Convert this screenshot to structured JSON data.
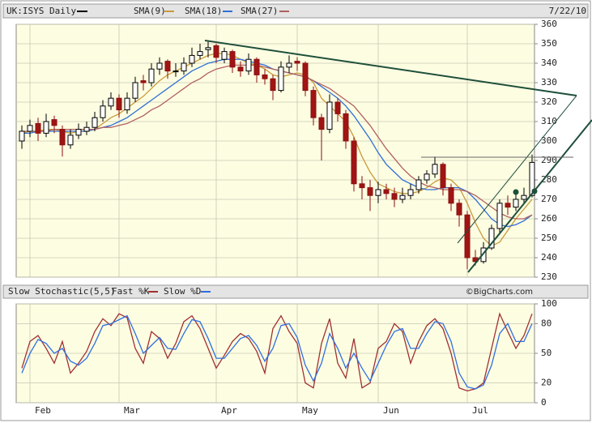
{
  "chart_data": [
    {
      "type": "candlestick",
      "title": "UK:ISYS Daily",
      "date": "7/22/10",
      "source": "©BigCharts.com",
      "categories": [
        null,
        "Feb",
        null,
        null,
        null,
        null,
        null,
        null,
        null,
        null,
        null,
        null,
        "Mar",
        null,
        null,
        null,
        null,
        null,
        null,
        null,
        null,
        null,
        null,
        null,
        "Apr",
        null,
        null,
        null,
        null,
        null,
        null,
        null,
        null,
        null,
        "May",
        null,
        null,
        null,
        null,
        null,
        null,
        null,
        null,
        null,
        "Jun",
        null,
        null,
        null,
        null,
        null,
        null,
        null,
        null,
        null,
        null,
        "Jul",
        null,
        null,
        null,
        null,
        null,
        null,
        null,
        null
      ],
      "open": [
        300,
        305,
        309,
        304,
        311,
        306,
        298,
        303,
        305,
        307,
        312,
        318,
        322,
        316,
        322,
        331,
        330,
        337,
        341,
        336,
        336,
        340,
        344,
        347,
        349,
        342,
        346,
        338,
        336,
        342,
        334,
        332,
        326,
        338,
        341,
        340,
        326,
        312,
        306,
        320,
        314,
        300,
        278,
        276,
        272,
        275,
        273,
        270,
        272,
        275,
        280,
        283,
        288,
        276,
        268,
        262,
        240,
        238,
        245,
        255,
        268,
        266,
        270,
        272
      ],
      "high": [
        308,
        311,
        312,
        314,
        313,
        308,
        306,
        309,
        310,
        315,
        321,
        325,
        324,
        325,
        333,
        334,
        340,
        343,
        342,
        340,
        343,
        348,
        350,
        351,
        350,
        348,
        347,
        341,
        345,
        343,
        337,
        334,
        341,
        344,
        343,
        341,
        328,
        314,
        324,
        322,
        316,
        302,
        282,
        280,
        279,
        278,
        276,
        276,
        278,
        282,
        285,
        292,
        289,
        278,
        270,
        264,
        244,
        248,
        257,
        270,
        272,
        273,
        276,
        293
      ],
      "low": [
        296,
        302,
        300,
        302,
        304,
        292,
        296,
        301,
        303,
        305,
        310,
        316,
        312,
        314,
        320,
        326,
        328,
        334,
        332,
        333,
        334,
        338,
        342,
        343,
        340,
        340,
        335,
        333,
        334,
        330,
        329,
        321,
        325,
        335,
        336,
        323,
        308,
        290,
        304,
        310,
        296,
        274,
        270,
        264,
        268,
        270,
        266,
        268,
        270,
        273,
        278,
        281,
        272,
        264,
        256,
        234,
        236,
        237,
        244,
        253,
        262,
        264,
        268,
        271
      ],
      "close": [
        305,
        308,
        304,
        310,
        308,
        298,
        303,
        306,
        307,
        312,
        318,
        322,
        316,
        322,
        330,
        330,
        337,
        340,
        336,
        336,
        340,
        344,
        346,
        348,
        343,
        346,
        338,
        336,
        342,
        334,
        332,
        326,
        338,
        340,
        340,
        326,
        312,
        306,
        320,
        314,
        300,
        278,
        276,
        272,
        275,
        273,
        270,
        272,
        275,
        280,
        283,
        288,
        276,
        268,
        262,
        240,
        238,
        245,
        255,
        268,
        266,
        270,
        272,
        289
      ],
      "series": [
        {
          "name": "SMA(9)",
          "color": "#c89a3c",
          "values": [
            304,
            305,
            305,
            306,
            306,
            305,
            304,
            305,
            305,
            306,
            309,
            312,
            314,
            317,
            320,
            323,
            327,
            331,
            334,
            336,
            338,
            340,
            342,
            344,
            345,
            345,
            344,
            342,
            340,
            339,
            337,
            334,
            333,
            334,
            335,
            334,
            330,
            322,
            318,
            314,
            310,
            302,
            292,
            284,
            278,
            276,
            274,
            273,
            273,
            274,
            276,
            279,
            281,
            280,
            276,
            268,
            258,
            250,
            246,
            248,
            254,
            260,
            265,
            270
          ]
        },
        {
          "name": "SMA(18)",
          "color": "#2f6fd6",
          "values": [
            304,
            304,
            305,
            305,
            305,
            305,
            305,
            305,
            305,
            306,
            307,
            308,
            310,
            312,
            315,
            318,
            321,
            324,
            327,
            330,
            333,
            336,
            338,
            340,
            341,
            342,
            342,
            342,
            341,
            340,
            339,
            337,
            336,
            335,
            334,
            333,
            331,
            328,
            325,
            322,
            318,
            313,
            307,
            301,
            294,
            288,
            284,
            280,
            278,
            276,
            275,
            275,
            276,
            276,
            276,
            274,
            270,
            265,
            260,
            257,
            256,
            257,
            259,
            262
          ]
        },
        {
          "name": "SMA(27)",
          "color": "#b06060",
          "values": [
            305,
            305,
            305,
            305,
            306,
            306,
            306,
            306,
            306,
            306,
            307,
            307,
            308,
            309,
            311,
            313,
            316,
            318,
            321,
            324,
            327,
            330,
            332,
            335,
            337,
            338,
            339,
            339,
            339,
            339,
            338,
            337,
            336,
            335,
            334,
            333,
            331,
            329,
            327,
            324,
            321,
            318,
            313,
            308,
            302,
            296,
            291,
            286,
            282,
            279,
            277,
            276,
            275,
            275,
            275,
            274,
            272,
            269,
            266,
            263,
            261,
            260,
            260,
            262
          ]
        }
      ],
      "ylim": [
        230,
        360
      ],
      "yticks": [
        230,
        240,
        250,
        260,
        270,
        280,
        290,
        300,
        310,
        320,
        330,
        340,
        350,
        360
      ],
      "grid": true
    },
    {
      "type": "line",
      "title": "Slow Stochastic(5,5)",
      "series": [
        {
          "name": "Fast %K",
          "color": "#a03030",
          "values": [
            35,
            62,
            68,
            55,
            40,
            62,
            30,
            40,
            52,
            72,
            85,
            78,
            90,
            86,
            55,
            40,
            72,
            65,
            45,
            60,
            82,
            88,
            75,
            55,
            35,
            48,
            62,
            70,
            65,
            52,
            30,
            75,
            88,
            72,
            60,
            20,
            15,
            60,
            85,
            40,
            25,
            65,
            15,
            20,
            55,
            62,
            80,
            72,
            40,
            62,
            78,
            85,
            75,
            50,
            15,
            12,
            14,
            20,
            55,
            90,
            72,
            55,
            68,
            90
          ]
        },
        {
          "name": "Slow %D",
          "color": "#2f6fe0",
          "values": [
            30,
            50,
            64,
            60,
            50,
            55,
            42,
            38,
            45,
            60,
            78,
            80,
            84,
            88,
            70,
            50,
            58,
            66,
            55,
            54,
            70,
            84,
            82,
            65,
            45,
            45,
            55,
            65,
            68,
            58,
            42,
            55,
            78,
            80,
            66,
            38,
            22,
            40,
            70,
            55,
            35,
            50,
            35,
            22,
            40,
            58,
            72,
            75,
            55,
            55,
            70,
            82,
            80,
            62,
            30,
            16,
            14,
            18,
            38,
            70,
            80,
            62,
            62,
            80
          ]
        }
      ],
      "ylim": [
        0,
        100
      ],
      "yticks": [
        0,
        20,
        50,
        80,
        100
      ],
      "grid": true
    }
  ]
}
